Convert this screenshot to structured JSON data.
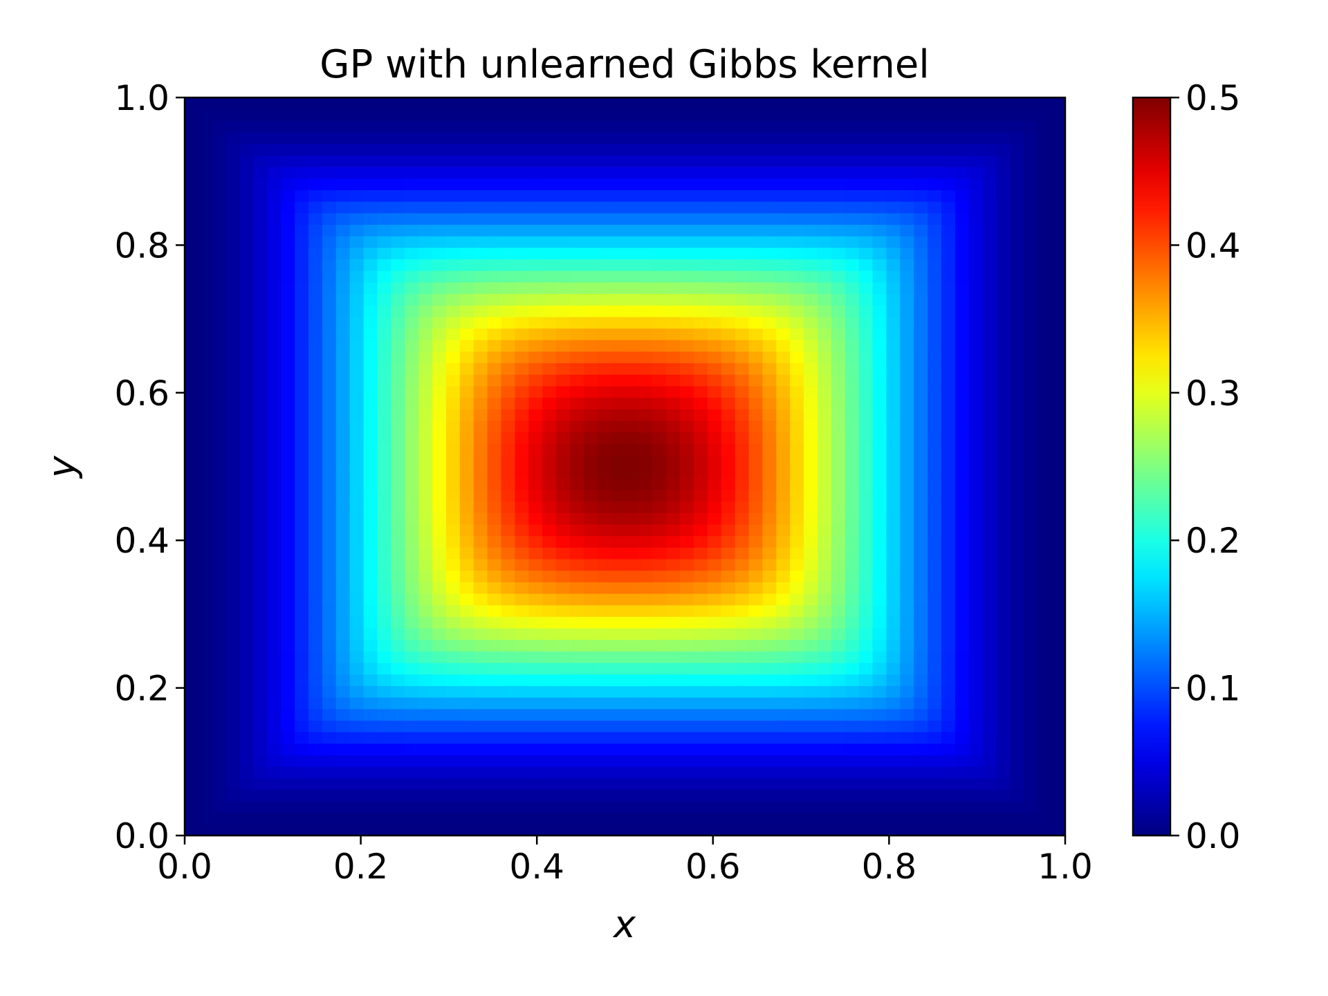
{
  "chart_data": {
    "type": "heatmap",
    "title": "GP with unlearned Gibbs kernel",
    "xlabel": "x",
    "ylabel": "y",
    "xlim": [
      0.0,
      1.0
    ],
    "ylim": [
      0.0,
      1.0
    ],
    "xticks": [
      "0.0",
      "0.2",
      "0.4",
      "0.6",
      "0.8",
      "1.0"
    ],
    "yticks": [
      "0.0",
      "0.2",
      "0.4",
      "0.6",
      "0.8",
      "1.0"
    ],
    "colormap": "jet",
    "clim": [
      0.0,
      0.5
    ],
    "colorbar_ticks": [
      "0.0",
      "0.1",
      "0.2",
      "0.3",
      "0.4",
      "0.5"
    ],
    "grid_resolution": 64,
    "peak": {
      "x": 0.5,
      "y": 0.5,
      "value": 0.5
    },
    "boundary_value": 0.0,
    "grid": false
  }
}
